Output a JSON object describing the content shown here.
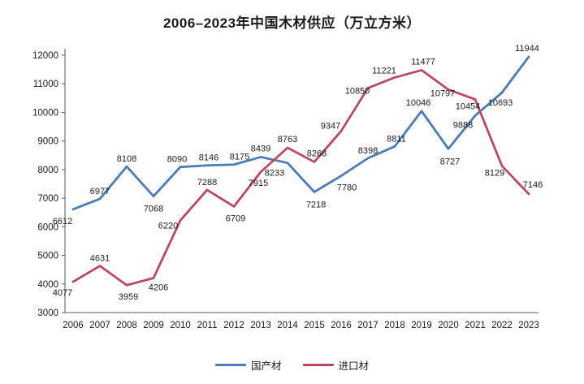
{
  "title": "2006–2023年中国木材供应（万立方米）",
  "chart_data": {
    "type": "line",
    "title": "2006–2023年中国木材供应（万立方米）",
    "x": [
      "2006",
      "2007",
      "2008",
      "2009",
      "2010",
      "2011",
      "2012",
      "2013",
      "2014",
      "2015",
      "2016",
      "2017",
      "2018",
      "2019",
      "2020",
      "2021",
      "2022",
      "2023"
    ],
    "series": [
      {
        "name": "国产材",
        "color": "#4a7cb8",
        "values": [
          6612,
          6977,
          8108,
          7068,
          8090,
          8146,
          8175,
          8439,
          8233,
          7218,
          7780,
          8398,
          8811,
          10046,
          8727,
          9888,
          10693,
          11944
        ]
      },
      {
        "name": "进口材",
        "color": "#bc4a5f",
        "values": [
          4077,
          4631,
          3959,
          4206,
          6220,
          7288,
          6709,
          7915,
          8763,
          8268,
          9347,
          10850,
          11221,
          11477,
          10797,
          10454,
          8129,
          7146
        ]
      }
    ],
    "xlabel": "",
    "ylabel": "",
    "ylim": [
      3000,
      12000
    ],
    "yticks": [
      3000,
      4000,
      5000,
      6000,
      7000,
      8000,
      9000,
      10000,
      11000,
      12000
    ],
    "grid": false,
    "value_labels": true,
    "legend_position": "bottom",
    "axis_color": "#595959",
    "label_color": "#1a1a1a"
  }
}
